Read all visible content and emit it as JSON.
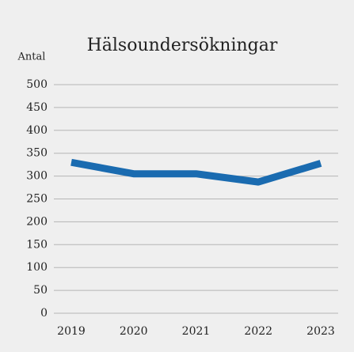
{
  "chart_data": {
    "type": "line",
    "title": "Hälsoundersökningar",
    "y_label": "Antal",
    "x": [
      "2019",
      "2020",
      "2021",
      "2022",
      "2023"
    ],
    "series": [
      {
        "name": "Antal",
        "color": "#1a6bb0",
        "values": [
          330,
          305,
          305,
          287,
          328
        ]
      }
    ],
    "ylim": [
      0,
      500
    ],
    "yticks": [
      0,
      50,
      100,
      150,
      200,
      250,
      300,
      350,
      400,
      450,
      500
    ],
    "grid": true
  }
}
